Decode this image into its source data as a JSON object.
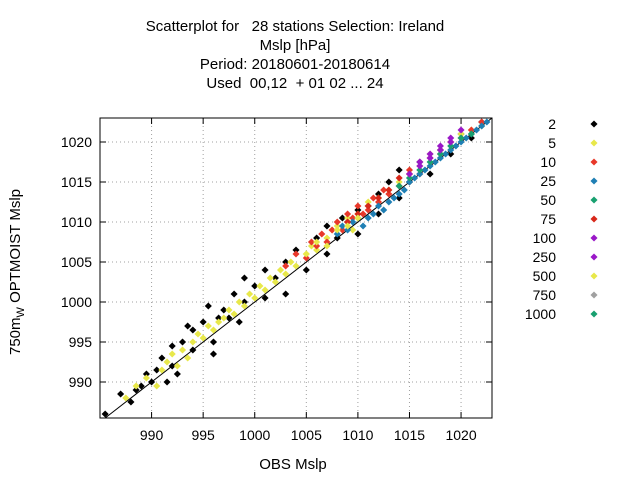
{
  "title_lines": [
    "Scatterplot for   28 stations Selection: Ireland",
    "Mslp [hPa]",
    "Period: 20180601-20180614",
    "Used  00,12  + 01 02 ... 24"
  ],
  "chart_data": {
    "type": "scatter",
    "xlabel": "OBS Mslp",
    "ylabel": {
      "pre": "750m",
      "sub": "W",
      "post": " OPTMOIST Mslp"
    },
    "xlim": [
      985,
      1023
    ],
    "ylim": [
      985.5,
      1023
    ],
    "xticks": [
      990,
      995,
      1000,
      1005,
      1010,
      1015,
      1020
    ],
    "yticks": [
      990,
      995,
      1000,
      1005,
      1010,
      1015,
      1020
    ],
    "grid": true,
    "diagonal_line": true,
    "legend_placement": "right",
    "series": [
      {
        "name": "2",
        "color": "#000000",
        "points": [
          [
            985.5,
            986
          ],
          [
            988,
            987.5
          ],
          [
            989,
            989.5
          ],
          [
            990,
            990
          ],
          [
            990.5,
            991.5
          ],
          [
            991,
            993
          ],
          [
            992,
            992
          ],
          [
            992.5,
            991
          ],
          [
            993,
            995
          ],
          [
            993.5,
            997
          ],
          [
            994,
            994
          ],
          [
            994,
            996.5
          ],
          [
            995,
            997.5
          ],
          [
            995.5,
            999.5
          ],
          [
            996,
            995
          ],
          [
            996,
            993.5
          ],
          [
            997,
            999
          ],
          [
            997.5,
            998
          ],
          [
            998,
            1001
          ],
          [
            999,
            1000
          ],
          [
            999,
            1003
          ],
          [
            1000,
            1002
          ],
          [
            1001,
            1000.5
          ],
          [
            1001,
            1004
          ],
          [
            1002,
            1003
          ],
          [
            1003,
            1001
          ],
          [
            1003,
            1005
          ],
          [
            1004,
            1006.5
          ],
          [
            1005,
            1004
          ],
          [
            1006,
            1008
          ],
          [
            1007,
            1006
          ],
          [
            1007,
            1009.5
          ],
          [
            1008,
            1008
          ],
          [
            1008.5,
            1010.5
          ],
          [
            1009,
            1010
          ],
          [
            1010,
            1008.5
          ],
          [
            1010,
            1011.5
          ],
          [
            1011,
            1012
          ],
          [
            1012,
            1011
          ],
          [
            1012,
            1013.5
          ],
          [
            1013,
            1015
          ],
          [
            1014,
            1013
          ],
          [
            1014,
            1016.5
          ],
          [
            1015,
            1015
          ],
          [
            1016,
            1017.5
          ],
          [
            1017,
            1016
          ],
          [
            1018,
            1019
          ],
          [
            1019,
            1018.5
          ],
          [
            1020,
            1021
          ],
          [
            1021,
            1020.5
          ],
          [
            1022,
            1022.5
          ],
          [
            987,
            988.5
          ],
          [
            988.5,
            989
          ],
          [
            989.5,
            991
          ],
          [
            991.5,
            990
          ],
          [
            992,
            994.5
          ],
          [
            996.5,
            998
          ],
          [
            998.5,
            997.5
          ]
        ]
      },
      {
        "name": "5",
        "color": "#e8e84a",
        "points": [
          [
            987.5,
            988
          ],
          [
            988.5,
            989.5
          ],
          [
            989.5,
            990.5
          ],
          [
            990.5,
            989.5
          ],
          [
            991,
            991.5
          ],
          [
            991.5,
            992.5
          ],
          [
            992,
            993.5
          ],
          [
            992.5,
            992
          ],
          [
            993,
            994
          ],
          [
            993.5,
            993
          ],
          [
            994,
            995
          ],
          [
            994.5,
            996
          ],
          [
            995,
            995.5
          ],
          [
            995.5,
            997
          ],
          [
            996,
            996.5
          ],
          [
            996.5,
            997.5
          ],
          [
            997,
            998
          ],
          [
            997.5,
            999
          ],
          [
            998,
            998.5
          ],
          [
            998.5,
            1000
          ],
          [
            999,
            999.5
          ],
          [
            999.5,
            1001
          ],
          [
            1000,
            1000.5
          ],
          [
            1000.5,
            1002
          ],
          [
            1001,
            1001.5
          ],
          [
            1001.5,
            1003
          ],
          [
            1002,
            1002.5
          ],
          [
            1002.5,
            1004
          ],
          [
            1003,
            1003.5
          ],
          [
            1003.5,
            1005
          ],
          [
            1004,
            1004.5
          ],
          [
            1005,
            1006
          ],
          [
            1005.5,
            1007
          ],
          [
            1006,
            1006.5
          ],
          [
            1007,
            1008
          ],
          [
            1007.5,
            1009
          ],
          [
            1008,
            1009.5
          ],
          [
            1009,
            1010.5
          ],
          [
            1009.5,
            1009
          ],
          [
            1010,
            1011
          ],
          [
            1011,
            1012.5
          ],
          [
            1012,
            1013
          ],
          [
            1013,
            1014
          ],
          [
            1014,
            1015
          ],
          [
            1015,
            1016
          ],
          [
            1016,
            1017
          ],
          [
            1017,
            1018.5
          ],
          [
            1018,
            1019
          ],
          [
            1019,
            1020
          ],
          [
            1020,
            1021
          ],
          [
            1021,
            1021.5
          ],
          [
            1022,
            1022
          ]
        ]
      },
      {
        "name": "10",
        "color": "#e8382a",
        "points": [
          [
            1003,
            1004.5
          ],
          [
            1004,
            1006
          ],
          [
            1005,
            1005.5
          ],
          [
            1005.5,
            1007.5
          ],
          [
            1006,
            1007
          ],
          [
            1006.5,
            1008.5
          ],
          [
            1007,
            1007.5
          ],
          [
            1007.5,
            1009
          ],
          [
            1008,
            1010
          ],
          [
            1008.5,
            1009
          ],
          [
            1009,
            1011
          ],
          [
            1009.5,
            1010.5
          ],
          [
            1010,
            1012
          ],
          [
            1010.5,
            1011
          ],
          [
            1011,
            1011.5
          ],
          [
            1011.5,
            1013
          ],
          [
            1012,
            1012.5
          ],
          [
            1012.5,
            1014
          ],
          [
            1013,
            1013.5
          ],
          [
            1014,
            1014.5
          ],
          [
            1015,
            1016.5
          ],
          [
            1016,
            1016
          ],
          [
            1017,
            1018
          ],
          [
            1018,
            1018.5
          ],
          [
            1019,
            1020
          ],
          [
            1020,
            1020.5
          ],
          [
            1021,
            1021.5
          ],
          [
            1022,
            1022.5
          ]
        ]
      },
      {
        "name": "25",
        "color": "#1f7fb4",
        "points": [
          [
            1008,
            1008.5
          ],
          [
            1008.5,
            1009.5
          ],
          [
            1009,
            1009
          ],
          [
            1009.5,
            1010
          ],
          [
            1010,
            1010.5
          ],
          [
            1010.5,
            1009.5
          ],
          [
            1011,
            1010.5
          ],
          [
            1011.5,
            1011
          ],
          [
            1012,
            1012
          ],
          [
            1012.5,
            1011.5
          ],
          [
            1013,
            1012.5
          ],
          [
            1013.5,
            1013
          ],
          [
            1014,
            1013.5
          ],
          [
            1014.5,
            1014
          ],
          [
            1015,
            1015
          ],
          [
            1015.5,
            1015.5
          ],
          [
            1016,
            1016
          ],
          [
            1016.5,
            1016.5
          ],
          [
            1017,
            1017
          ],
          [
            1017.5,
            1017.5
          ],
          [
            1018,
            1018
          ],
          [
            1018.5,
            1018.5
          ],
          [
            1019,
            1019
          ],
          [
            1019.5,
            1019.5
          ],
          [
            1020,
            1020
          ],
          [
            1020.5,
            1020.5
          ],
          [
            1021,
            1021
          ],
          [
            1021.5,
            1021.5
          ],
          [
            1022,
            1022
          ],
          [
            1022.5,
            1022.5
          ]
        ]
      },
      {
        "name": "50",
        "color": "#18a070",
        "points": [
          [
            1014,
            1014.5
          ],
          [
            1015,
            1015.5
          ],
          [
            1016,
            1016.5
          ],
          [
            1017,
            1017.5
          ],
          [
            1018,
            1018.5
          ],
          [
            1019,
            1019.5
          ],
          [
            1020,
            1020.5
          ],
          [
            1021,
            1021
          ]
        ]
      },
      {
        "name": "75",
        "color": "#d8281a",
        "points": [
          [
            1009,
            1010
          ],
          [
            1010,
            1011
          ],
          [
            1011,
            1012
          ],
          [
            1012,
            1013
          ],
          [
            1013,
            1014
          ],
          [
            1014,
            1015.5
          ],
          [
            1015,
            1016
          ]
        ]
      },
      {
        "name": "100",
        "color": "#9a18c8",
        "points": [
          [
            1015,
            1016
          ],
          [
            1016,
            1017.5
          ],
          [
            1017,
            1018
          ],
          [
            1018,
            1019.5
          ],
          [
            1019,
            1020
          ],
          [
            1020,
            1021.5
          ]
        ]
      },
      {
        "name": "250",
        "color": "#9a18c8",
        "points": [
          [
            1016,
            1017
          ],
          [
            1017,
            1018.5
          ],
          [
            1018,
            1019
          ],
          [
            1019,
            1020.5
          ]
        ]
      },
      {
        "name": "500",
        "color": "#e8e84a",
        "points": [
          [
            1005,
            1006
          ],
          [
            1006,
            1007.5
          ],
          [
            1007,
            1007
          ],
          [
            1008,
            1009
          ],
          [
            1009,
            1009.5
          ],
          [
            1010,
            1010.5
          ]
        ]
      },
      {
        "name": "750",
        "color": "#a0a0a0",
        "points": []
      },
      {
        "name": "1000",
        "color": "#18a070",
        "points": []
      }
    ]
  }
}
